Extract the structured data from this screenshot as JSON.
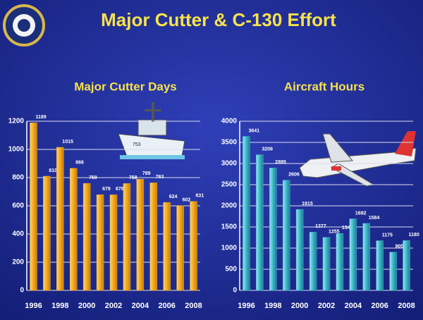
{
  "title": "Major Cutter & C-130 Effort",
  "chart_data": [
    {
      "type": "bar",
      "title": "Major Cutter Days",
      "categories": [
        "1996",
        null,
        "1998",
        null,
        "2000",
        null,
        "2002",
        null,
        "2004",
        null,
        "2006",
        null,
        "2008"
      ],
      "values": [
        1189,
        810,
        1015,
        866,
        759,
        679,
        678,
        758,
        789,
        763,
        624,
        602,
        631
      ],
      "color": "#f2a81e",
      "ylim": [
        0,
        1200
      ],
      "yticks": [
        0,
        200,
        400,
        600,
        800,
        1000,
        1200
      ],
      "grid": true
    },
    {
      "type": "bar",
      "title": "Aircraft Hours",
      "categories": [
        "1996",
        null,
        "1998",
        null,
        "2000",
        null,
        "2002",
        null,
        "2004",
        null,
        "2006",
        null,
        "2008"
      ],
      "values": [
        3641,
        3208,
        2895,
        2606,
        1915,
        1377,
        1255,
        1346,
        1692,
        1584,
        1175,
        905,
        1180
      ],
      "color": "#3cb6c8",
      "ylim": [
        0,
        4000
      ],
      "yticks": [
        0,
        500,
        1000,
        1500,
        2000,
        2500,
        3000,
        3500,
        4000
      ],
      "grid": true
    }
  ]
}
